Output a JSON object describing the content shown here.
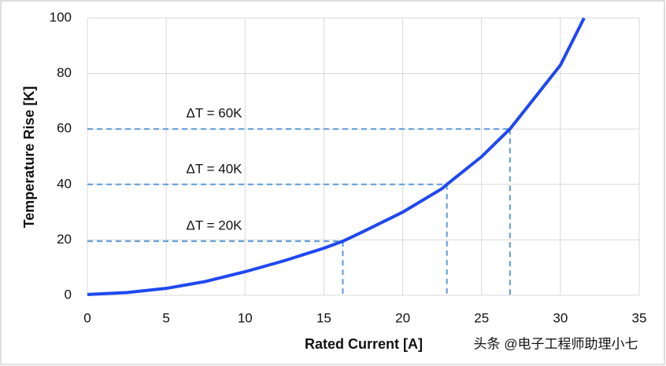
{
  "chart_data": {
    "type": "line",
    "x_label": "Rated Current [A]",
    "y_label": "Temperature Rise  [K]",
    "watermark": "头条 @电子工程师助理小七",
    "xlim": [
      0,
      35
    ],
    "xticks": [
      0,
      5,
      10,
      15,
      20,
      25,
      30,
      35
    ],
    "ylim": [
      0,
      100
    ],
    "yticks": [
      0,
      20,
      40,
      60,
      80,
      100
    ],
    "grid": true,
    "series": [
      {
        "color": "#1f48f0",
        "x": [
          0,
          2.5,
          5,
          7.5,
          10,
          12.5,
          15,
          16.2,
          17.5,
          20,
          22.5,
          22.8,
          25,
          26.8,
          27.5,
          30,
          31.5
        ],
        "values": [
          0.3,
          1,
          2.5,
          5,
          8.5,
          12.5,
          17,
          19.5,
          23,
          30,
          38.5,
          40,
          50,
          60,
          65,
          83,
          100
        ]
      }
    ],
    "annotations": [
      {
        "label": "ΔT = 20K",
        "x": 16.2,
        "y": 19.5
      },
      {
        "label": "ΔT = 40K",
        "x": 22.8,
        "y": 40
      },
      {
        "label": "ΔT = 60K",
        "x": 26.8,
        "y": 60
      }
    ],
    "annotation_color": "#5b9bd5"
  }
}
